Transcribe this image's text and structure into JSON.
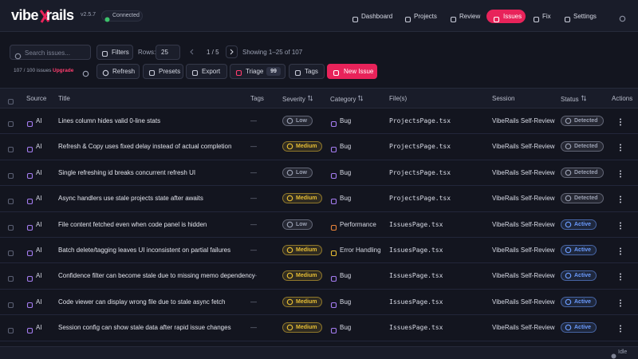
{
  "header": {
    "brand": {
      "left": "vibe",
      "right": "rails"
    },
    "version": "v2.5.7",
    "status": "Connected",
    "nav": [
      "Dashboard",
      "Projects",
      "Review",
      "Issues",
      "Fix",
      "Settings"
    ]
  },
  "toolbar": {
    "search_placeholder": "Search issues...",
    "filters": "Filters",
    "rows_label": "Rows:",
    "rows_value": "25",
    "page": "1 / 5",
    "showing": "Showing 1–25 of 107",
    "quota": "107 / 100 issues",
    "upgrade": "Upgrade",
    "buttons": [
      "Refresh",
      "Presets",
      "Export",
      "Triage",
      "Tags"
    ],
    "triage_count": "99",
    "new_issue": "New Issue"
  },
  "table": {
    "columns": [
      "Source",
      "Title",
      "Tags",
      "Severity",
      "Category",
      "File(s)",
      "Session",
      "Status",
      "Actions"
    ],
    "rows": [
      [
        "AI",
        "Lines column hides valid 0-line stats",
        "—",
        "Low",
        "Bug",
        "ProjectsPage.tsx",
        "VibeRails Self-Review",
        "Detected"
      ],
      [
        "AI",
        "Refresh & Copy uses fixed delay instead of actual completion",
        "—",
        "Medium",
        "Bug",
        "ProjectsPage.tsx",
        "VibeRails Self-Review",
        "Detected"
      ],
      [
        "AI",
        "Single refreshing id breaks concurrent refresh UI",
        "—",
        "Low",
        "Bug",
        "ProjectsPage.tsx",
        "VibeRails Self-Review",
        "Detected"
      ],
      [
        "AI",
        "Async handlers use stale projects state after awaits",
        "—",
        "Medium",
        "Bug",
        "ProjectsPage.tsx",
        "VibeRails Self-Review",
        "Detected"
      ],
      [
        "AI",
        "File content fetched even when code panel is hidden",
        "—",
        "Low",
        "Performance",
        "IssuesPage.tsx",
        "VibeRails Self-Review",
        "Active"
      ],
      [
        "AI",
        "Batch delete/tagging leaves UI inconsistent on partial failures",
        "—",
        "Medium",
        "Error Handling",
        "IssuesPage.tsx",
        "VibeRails Self-Review",
        "Active"
      ],
      [
        "AI",
        "Confidence filter can become stale due to missing memo dependency",
        "—",
        "Medium",
        "Bug",
        "IssuesPage.tsx",
        "VibeRails Self-Review",
        "Active"
      ],
      [
        "AI",
        "Code viewer can display wrong file due to stale async fetch",
        "—",
        "Medium",
        "Bug",
        "IssuesPage.tsx",
        "VibeRails Self-Review",
        "Active"
      ],
      [
        "AI",
        "Session config can show stale data after rapid issue changes",
        "—",
        "Medium",
        "Bug",
        "IssuesPage.tsx",
        "VibeRails Self-Review",
        "Active"
      ]
    ]
  },
  "badge_colors": {
    "Low": "#9aa0b2",
    "Medium": "#e6bd34",
    "Detected": "#9aa0b2",
    "Active": "#6b9cff"
  },
  "category_colors": {
    "Bug": "#a47cf0",
    "Performance": "#e8833a",
    "Error Handling": "#e6bd34"
  },
  "footer": {
    "state": "Idle"
  }
}
